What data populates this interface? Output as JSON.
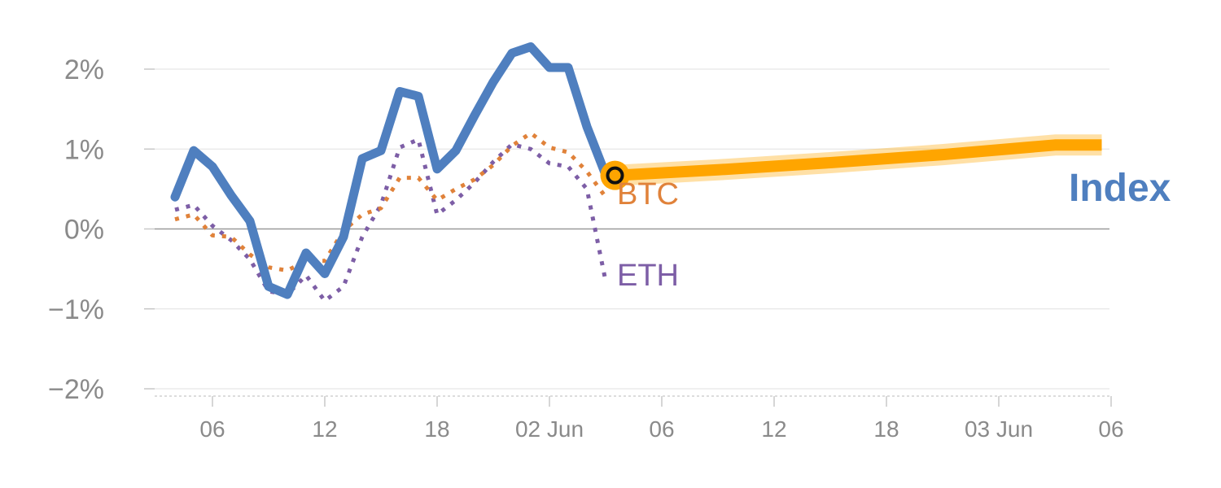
{
  "chart_data": {
    "type": "line",
    "x_unit": "hours",
    "y_unit": "percent",
    "ylim": [
      -2,
      2
    ],
    "xlim": [
      -2.6,
      48
    ],
    "y_ticks": [
      {
        "value": 2,
        "label": "2%"
      },
      {
        "value": 1,
        "label": "1%"
      },
      {
        "value": 0,
        "label": "0%"
      },
      {
        "value": -1,
        "label": "−1%"
      },
      {
        "value": -2,
        "label": "−2%"
      }
    ],
    "x_ticks": [
      {
        "value": 0,
        "label": "06"
      },
      {
        "value": 6,
        "label": "12"
      },
      {
        "value": 12,
        "label": "18"
      },
      {
        "value": 18,
        "label": "02 Jun"
      },
      {
        "value": 24,
        "label": "06"
      },
      {
        "value": 30,
        "label": "12"
      },
      {
        "value": 36,
        "label": "18"
      },
      {
        "value": 42,
        "label": "03 Jun"
      },
      {
        "value": 48,
        "label": "06"
      }
    ],
    "grid": true,
    "series": [
      {
        "name": "Index",
        "color": "#4f7fbf",
        "style": "solid",
        "points": [
          [
            -2,
            0.4
          ],
          [
            -1,
            0.98
          ],
          [
            0,
            0.78
          ],
          [
            1,
            0.42
          ],
          [
            2,
            0.1
          ],
          [
            3,
            -0.72
          ],
          [
            4,
            -0.82
          ],
          [
            5,
            -0.3
          ],
          [
            6,
            -0.56
          ],
          [
            7,
            -0.1
          ],
          [
            8,
            0.88
          ],
          [
            9,
            0.98
          ],
          [
            10,
            1.72
          ],
          [
            11,
            1.66
          ],
          [
            12,
            0.75
          ],
          [
            13,
            0.98
          ],
          [
            14,
            1.42
          ],
          [
            15,
            1.84
          ],
          [
            16,
            2.2
          ],
          [
            17,
            2.28
          ],
          [
            18,
            2.02
          ],
          [
            19,
            2.02
          ],
          [
            20,
            1.28
          ],
          [
            21,
            0.68
          ]
        ]
      },
      {
        "name": "BTC",
        "color": "#e0823a",
        "style": "dotted",
        "points": [
          [
            -2,
            0.12
          ],
          [
            -1,
            0.18
          ],
          [
            0,
            -0.08
          ],
          [
            1,
            -0.1
          ],
          [
            2,
            -0.32
          ],
          [
            3,
            -0.48
          ],
          [
            4,
            -0.52
          ],
          [
            5,
            -0.4
          ],
          [
            6,
            -0.4
          ],
          [
            7,
            -0.02
          ],
          [
            8,
            0.18
          ],
          [
            9,
            0.26
          ],
          [
            10,
            0.64
          ],
          [
            11,
            0.64
          ],
          [
            12,
            0.36
          ],
          [
            13,
            0.5
          ],
          [
            14,
            0.62
          ],
          [
            15,
            0.8
          ],
          [
            16,
            1.04
          ],
          [
            17,
            1.2
          ],
          [
            18,
            1.02
          ],
          [
            19,
            0.96
          ],
          [
            20,
            0.72
          ],
          [
            21,
            0.4
          ]
        ]
      },
      {
        "name": "ETH",
        "color": "#7d5ea6",
        "style": "dotted",
        "points": [
          [
            -2,
            0.24
          ],
          [
            -1,
            0.3
          ],
          [
            0,
            0.04
          ],
          [
            1,
            -0.14
          ],
          [
            2,
            -0.38
          ],
          [
            3,
            -0.78
          ],
          [
            4,
            -0.82
          ],
          [
            5,
            -0.58
          ],
          [
            6,
            -0.9
          ],
          [
            7,
            -0.72
          ],
          [
            8,
            -0.1
          ],
          [
            9,
            0.3
          ],
          [
            10,
            1.02
          ],
          [
            11,
            1.12
          ],
          [
            12,
            0.18
          ],
          [
            13,
            0.36
          ],
          [
            14,
            0.58
          ],
          [
            15,
            0.84
          ],
          [
            16,
            1.06
          ],
          [
            17,
            1.0
          ],
          [
            18,
            0.82
          ],
          [
            19,
            0.78
          ],
          [
            20,
            0.5
          ],
          [
            21,
            -0.65
          ]
        ]
      }
    ],
    "forecast": {
      "color": "#ffa500",
      "points": [
        [
          21.5,
          0.67
        ],
        [
          27,
          0.74
        ],
        [
          33,
          0.83
        ],
        [
          39,
          0.93
        ],
        [
          45,
          1.05
        ],
        [
          47.5,
          1.05
        ]
      ]
    },
    "marker": {
      "x": 21.5,
      "y": 0.67,
      "color": "#ffa500"
    }
  },
  "labels": {
    "btc": "BTC",
    "eth": "ETH",
    "index": "Index"
  }
}
